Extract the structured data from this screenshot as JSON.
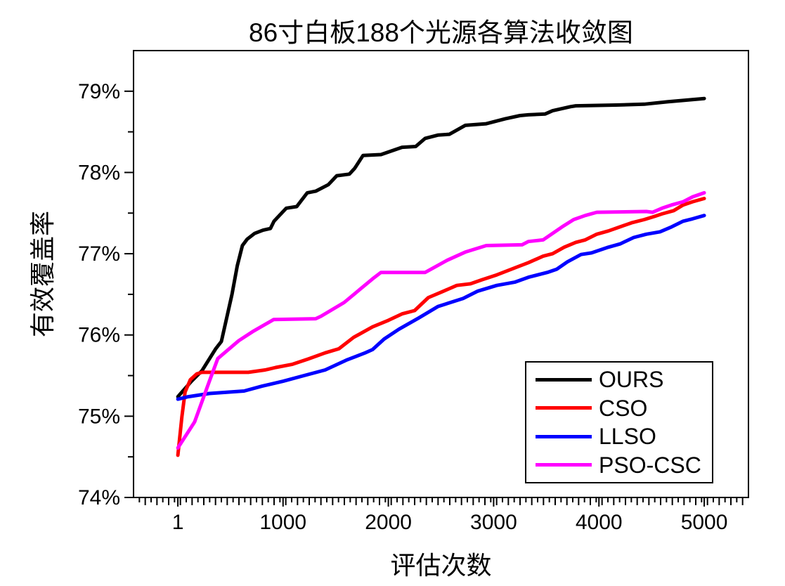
{
  "chart_data": {
    "type": "line",
    "title": "86寸白板188个光源各算法收敛图",
    "xlabel": "评估次数",
    "ylabel": "有效覆盖率",
    "xlim": [
      -420,
      5420
    ],
    "ylim": [
      74,
      79.5
    ],
    "grid": false,
    "legend_position": "lower right",
    "x_ticks": [
      {
        "value": 1,
        "label": "1"
      },
      {
        "value": 1000,
        "label": "1000"
      },
      {
        "value": 2000,
        "label": "2000"
      },
      {
        "value": 3000,
        "label": "3000"
      },
      {
        "value": 4000,
        "label": "4000"
      },
      {
        "value": 5000,
        "label": "5000"
      }
    ],
    "y_ticks": [
      {
        "value": 74,
        "label": "74%"
      },
      {
        "value": 75,
        "label": "75%"
      },
      {
        "value": 76,
        "label": "76%"
      },
      {
        "value": 77,
        "label": "77%"
      },
      {
        "value": 78,
        "label": "78%"
      },
      {
        "value": 79,
        "label": "79%"
      }
    ],
    "y_minor_ticks": [
      74.5,
      75.5,
      76.5,
      77.5,
      78.5
    ],
    "series": [
      {
        "name": "OURS",
        "color": "#000000",
        "points": [
          [
            1,
            75.24
          ],
          [
            130,
            75.43
          ],
          [
            230,
            75.56
          ],
          [
            360,
            75.83
          ],
          [
            414,
            75.92
          ],
          [
            515,
            76.5
          ],
          [
            565,
            76.85
          ],
          [
            614,
            77.1
          ],
          [
            660,
            77.18
          ],
          [
            730,
            77.25
          ],
          [
            810,
            77.29
          ],
          [
            880,
            77.31
          ],
          [
            914,
            77.4
          ],
          [
            1030,
            77.56
          ],
          [
            1130,
            77.58
          ],
          [
            1230,
            77.75
          ],
          [
            1310,
            77.77
          ],
          [
            1430,
            77.85
          ],
          [
            1510,
            77.96
          ],
          [
            1630,
            77.98
          ],
          [
            1680,
            78.05
          ],
          [
            1760,
            78.21
          ],
          [
            1930,
            78.22
          ],
          [
            2130,
            78.31
          ],
          [
            2260,
            78.32
          ],
          [
            2350,
            78.42
          ],
          [
            2470,
            78.46
          ],
          [
            2580,
            78.47
          ],
          [
            2730,
            78.58
          ],
          [
            2930,
            78.6
          ],
          [
            3110,
            78.66
          ],
          [
            3250,
            78.7
          ],
          [
            3330,
            78.71
          ],
          [
            3490,
            78.72
          ],
          [
            3560,
            78.76
          ],
          [
            3730,
            78.81
          ],
          [
            3780,
            78.82
          ],
          [
            4160,
            78.83
          ],
          [
            4430,
            78.84
          ],
          [
            4650,
            78.87
          ],
          [
            4830,
            78.89
          ],
          [
            5000,
            78.91
          ]
        ]
      },
      {
        "name": "CSO",
        "color": "#ff0000",
        "points": [
          [
            1,
            74.52
          ],
          [
            40,
            75.0
          ],
          [
            70,
            75.3
          ],
          [
            120,
            75.45
          ],
          [
            180,
            75.52
          ],
          [
            230,
            75.54
          ],
          [
            670,
            75.54
          ],
          [
            830,
            75.57
          ],
          [
            930,
            75.6
          ],
          [
            1090,
            75.64
          ],
          [
            1230,
            75.7
          ],
          [
            1400,
            75.78
          ],
          [
            1530,
            75.83
          ],
          [
            1670,
            75.97
          ],
          [
            1850,
            76.1
          ],
          [
            2000,
            76.18
          ],
          [
            2130,
            76.26
          ],
          [
            2250,
            76.3
          ],
          [
            2380,
            76.46
          ],
          [
            2490,
            76.52
          ],
          [
            2650,
            76.61
          ],
          [
            2780,
            76.63
          ],
          [
            2890,
            76.68
          ],
          [
            3030,
            76.74
          ],
          [
            3230,
            76.84
          ],
          [
            3330,
            76.89
          ],
          [
            3470,
            76.97
          ],
          [
            3560,
            77.0
          ],
          [
            3670,
            77.08
          ],
          [
            3780,
            77.14
          ],
          [
            3870,
            77.17
          ],
          [
            3980,
            77.24
          ],
          [
            4090,
            77.28
          ],
          [
            4200,
            77.33
          ],
          [
            4310,
            77.38
          ],
          [
            4430,
            77.42
          ],
          [
            4530,
            77.46
          ],
          [
            4600,
            77.49
          ],
          [
            4710,
            77.53
          ],
          [
            4800,
            77.6
          ],
          [
            4890,
            77.64
          ],
          [
            5000,
            77.68
          ]
        ]
      },
      {
        "name": "LLSO",
        "color": "#0000ff",
        "points": [
          [
            1,
            75.21
          ],
          [
            100,
            75.24
          ],
          [
            300,
            75.28
          ],
          [
            630,
            75.31
          ],
          [
            800,
            75.37
          ],
          [
            1000,
            75.43
          ],
          [
            1200,
            75.5
          ],
          [
            1400,
            75.57
          ],
          [
            1600,
            75.69
          ],
          [
            1780,
            75.78
          ],
          [
            1850,
            75.82
          ],
          [
            1960,
            75.95
          ],
          [
            2100,
            76.07
          ],
          [
            2290,
            76.21
          ],
          [
            2470,
            76.35
          ],
          [
            2710,
            76.45
          ],
          [
            2850,
            76.54
          ],
          [
            3030,
            76.61
          ],
          [
            3200,
            76.65
          ],
          [
            3330,
            76.71
          ],
          [
            3510,
            76.77
          ],
          [
            3600,
            76.81
          ],
          [
            3700,
            76.9
          ],
          [
            3830,
            76.99
          ],
          [
            3930,
            77.01
          ],
          [
            4090,
            77.08
          ],
          [
            4200,
            77.12
          ],
          [
            4330,
            77.2
          ],
          [
            4450,
            77.24
          ],
          [
            4580,
            77.27
          ],
          [
            4690,
            77.33
          ],
          [
            4800,
            77.4
          ],
          [
            4890,
            77.43
          ],
          [
            5000,
            77.47
          ]
        ]
      },
      {
        "name": "PSO-CSC",
        "color": "#ff00ff",
        "points": [
          [
            1,
            74.61
          ],
          [
            160,
            74.93
          ],
          [
            300,
            75.43
          ],
          [
            380,
            75.71
          ],
          [
            580,
            75.93
          ],
          [
            710,
            76.04
          ],
          [
            910,
            76.19
          ],
          [
            1310,
            76.2
          ],
          [
            1360,
            76.23
          ],
          [
            1580,
            76.4
          ],
          [
            1850,
            76.69
          ],
          [
            1930,
            76.77
          ],
          [
            2350,
            76.77
          ],
          [
            2560,
            76.92
          ],
          [
            2730,
            77.02
          ],
          [
            2930,
            77.1
          ],
          [
            3270,
            77.11
          ],
          [
            3330,
            77.15
          ],
          [
            3470,
            77.17
          ],
          [
            3650,
            77.33
          ],
          [
            3760,
            77.42
          ],
          [
            3870,
            77.47
          ],
          [
            3980,
            77.51
          ],
          [
            4450,
            77.52
          ],
          [
            4510,
            77.51
          ],
          [
            4600,
            77.56
          ],
          [
            4690,
            77.6
          ],
          [
            4800,
            77.64
          ],
          [
            4890,
            77.7
          ],
          [
            5000,
            77.75
          ]
        ]
      }
    ]
  }
}
